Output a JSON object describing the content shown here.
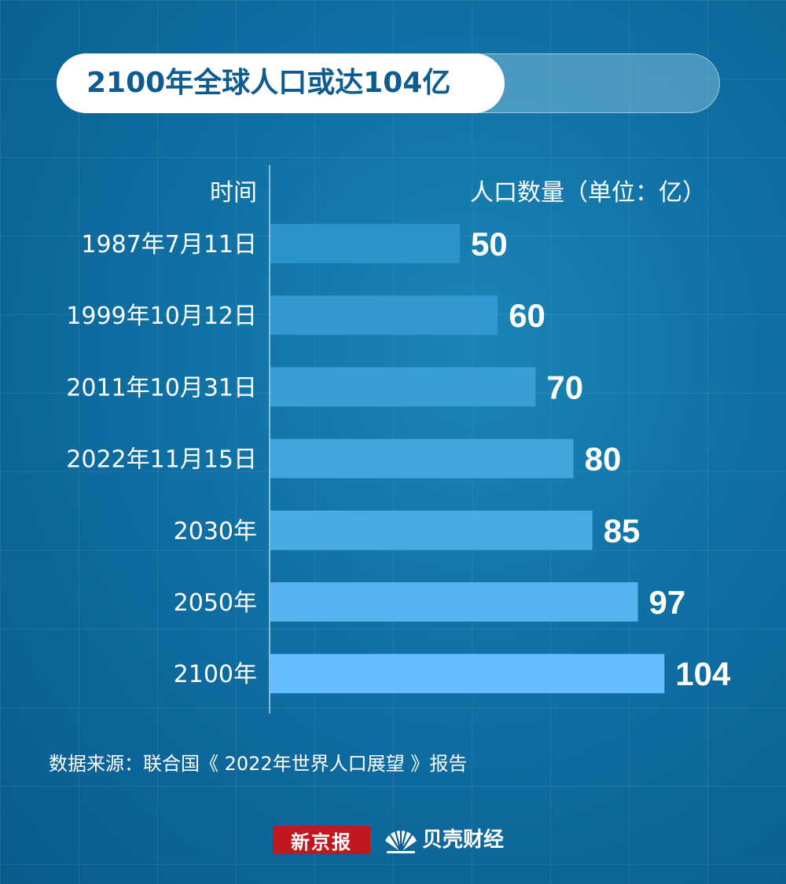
{
  "title": "2100年全球人口或达104亿",
  "headers": {
    "time": "时间",
    "population": "人口数量（单位：亿）"
  },
  "chart_data": {
    "type": "bar",
    "orientation": "horizontal",
    "title": "2100年全球人口或达104亿",
    "xlabel": "人口数量（单位：亿）",
    "ylabel": "时间",
    "categories": [
      "1987年7月11日",
      "1999年10月12日",
      "2011年10月31日",
      "2022年11月15日",
      "2030年",
      "2050年",
      "2100年"
    ],
    "values": [
      50,
      60,
      70,
      80,
      85,
      97,
      104
    ],
    "value_labels": [
      "50",
      "60",
      "70",
      "80",
      "85",
      "97",
      "104"
    ],
    "bar_colors": [
      "#2a93c9",
      "#3199cf",
      "#389fd5",
      "#3fa6dc",
      "#47ace2",
      "#55b3f0",
      "#66bcff"
    ],
    "grid": true,
    "legend": "none"
  },
  "source": "数据来源：联合国《 2022年世界人口展望 》报告",
  "brand": {
    "newspaper": "新京报",
    "finance": "贝壳财经",
    "accent": "#c0181c"
  }
}
